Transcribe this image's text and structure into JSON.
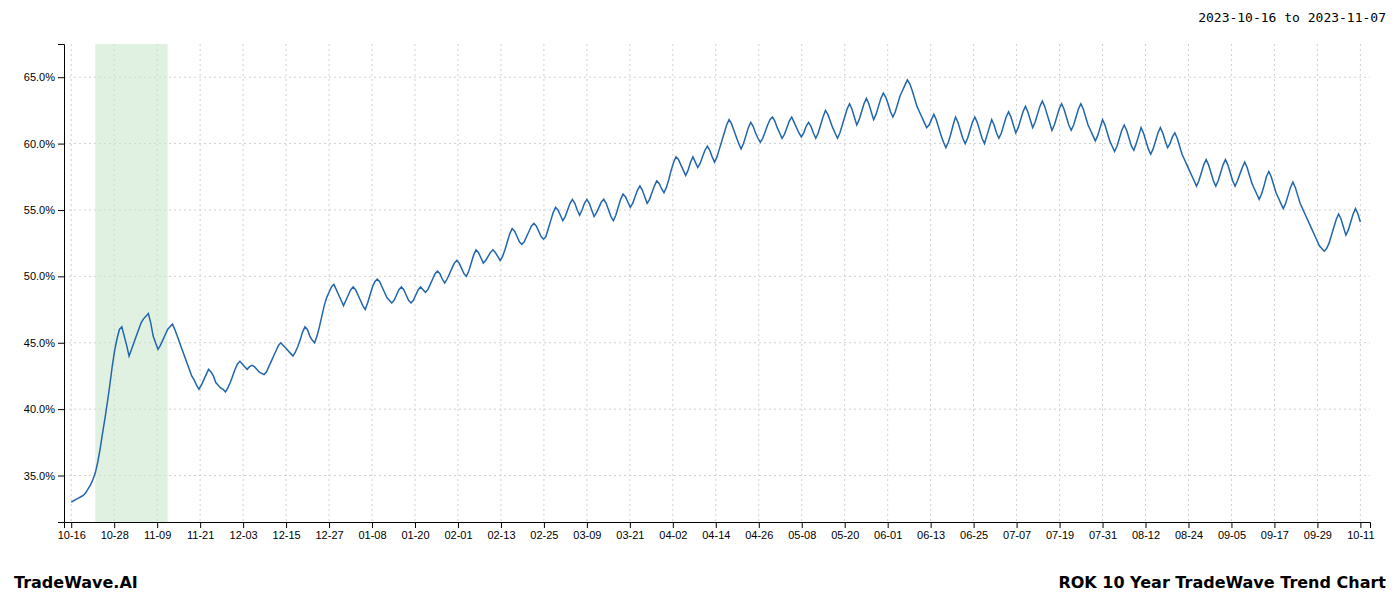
{
  "chart_data": {
    "type": "line",
    "title": "ROK 10 Year TradeWave Trend Chart",
    "subtitle": "2023-10-16 to 2023-11-07",
    "annotations": [
      "TradeWave.AI"
    ],
    "color": "#2166ac",
    "grid": true,
    "highlight": {
      "range": [
        10,
        40
      ],
      "color": "#c8e6c9"
    },
    "xlim": [
      -3,
      539
    ],
    "xticks": [
      {
        "value": 0,
        "label": "10-16"
      },
      {
        "value": 17.8333,
        "label": "10-28"
      },
      {
        "value": 35.6667,
        "label": "11-09"
      },
      {
        "value": 53.5,
        "label": "11-21"
      },
      {
        "value": 71.3333,
        "label": "12-03"
      },
      {
        "value": 89.1667,
        "label": "12-15"
      },
      {
        "value": 107,
        "label": "12-27"
      },
      {
        "value": 124.8333,
        "label": "01-08"
      },
      {
        "value": 142.6667,
        "label": "01-20"
      },
      {
        "value": 160.5,
        "label": "02-01"
      },
      {
        "value": 178.3333,
        "label": "02-13"
      },
      {
        "value": 196.1667,
        "label": "02-25"
      },
      {
        "value": 214,
        "label": "03-09"
      },
      {
        "value": 231.8333,
        "label": "03-21"
      },
      {
        "value": 249.6667,
        "label": "04-02"
      },
      {
        "value": 267.5,
        "label": "04-14"
      },
      {
        "value": 285.3333,
        "label": "04-26"
      },
      {
        "value": 303.1667,
        "label": "05-08"
      },
      {
        "value": 321,
        "label": "05-20"
      },
      {
        "value": 338.8333,
        "label": "06-01"
      },
      {
        "value": 356.6667,
        "label": "06-13"
      },
      {
        "value": 374.5,
        "label": "06-25"
      },
      {
        "value": 392.3333,
        "label": "07-07"
      },
      {
        "value": 410.1667,
        "label": "07-19"
      },
      {
        "value": 428,
        "label": "07-31"
      },
      {
        "value": 445.8333,
        "label": "08-12"
      },
      {
        "value": 463.6667,
        "label": "08-24"
      },
      {
        "value": 481.5,
        "label": "09-05"
      },
      {
        "value": 499.3333,
        "label": "09-17"
      },
      {
        "value": 517.1667,
        "label": "09-29"
      },
      {
        "value": 535,
        "label": "10-11"
      }
    ],
    "ylim": [
      0.315,
      0.675
    ],
    "yticks": [
      {
        "value": 0.35,
        "label": "35.0%"
      },
      {
        "value": 0.4,
        "label": "40.0%"
      },
      {
        "value": 0.45,
        "label": "45.0%"
      },
      {
        "value": 0.5,
        "label": "50.0%"
      },
      {
        "value": 0.55,
        "label": "55.0%"
      },
      {
        "value": 0.6,
        "label": "60.0%"
      },
      {
        "value": 0.65,
        "label": "65.0%"
      }
    ],
    "values": [
      0.33,
      0.331,
      0.332,
      0.333,
      0.334,
      0.335,
      0.337,
      0.34,
      0.343,
      0.347,
      0.352,
      0.36,
      0.37,
      0.382,
      0.393,
      0.405,
      0.418,
      0.432,
      0.444,
      0.453,
      0.46,
      0.462,
      0.455,
      0.448,
      0.44,
      0.445,
      0.45,
      0.455,
      0.46,
      0.465,
      0.468,
      0.47,
      0.472,
      0.465,
      0.455,
      0.45,
      0.445,
      0.448,
      0.452,
      0.456,
      0.46,
      0.462,
      0.464,
      0.46,
      0.455,
      0.45,
      0.445,
      0.44,
      0.435,
      0.43,
      0.425,
      0.422,
      0.418,
      0.415,
      0.418,
      0.422,
      0.426,
      0.43,
      0.428,
      0.425,
      0.42,
      0.418,
      0.416,
      0.415,
      0.413,
      0.416,
      0.42,
      0.425,
      0.43,
      0.434,
      0.436,
      0.434,
      0.432,
      0.43,
      0.432,
      0.433,
      0.432,
      0.43,
      0.428,
      0.427,
      0.426,
      0.428,
      0.432,
      0.436,
      0.44,
      0.444,
      0.448,
      0.45,
      0.448,
      0.446,
      0.444,
      0.442,
      0.44,
      0.443,
      0.447,
      0.452,
      0.458,
      0.462,
      0.46,
      0.455,
      0.452,
      0.45,
      0.455,
      0.462,
      0.47,
      0.478,
      0.484,
      0.488,
      0.492,
      0.494,
      0.49,
      0.486,
      0.482,
      0.478,
      0.482,
      0.486,
      0.49,
      0.492,
      0.49,
      0.486,
      0.482,
      0.478,
      0.475,
      0.48,
      0.486,
      0.492,
      0.496,
      0.498,
      0.496,
      0.492,
      0.488,
      0.484,
      0.482,
      0.48,
      0.482,
      0.486,
      0.49,
      0.492,
      0.49,
      0.486,
      0.482,
      0.48,
      0.482,
      0.486,
      0.49,
      0.492,
      0.49,
      0.488,
      0.49,
      0.494,
      0.498,
      0.502,
      0.504,
      0.502,
      0.498,
      0.495,
      0.498,
      0.502,
      0.506,
      0.51,
      0.512,
      0.51,
      0.506,
      0.502,
      0.5,
      0.504,
      0.51,
      0.516,
      0.52,
      0.518,
      0.514,
      0.51,
      0.512,
      0.515,
      0.518,
      0.52,
      0.518,
      0.515,
      0.512,
      0.515,
      0.52,
      0.526,
      0.532,
      0.536,
      0.534,
      0.53,
      0.526,
      0.524,
      0.526,
      0.53,
      0.534,
      0.538,
      0.54,
      0.538,
      0.534,
      0.53,
      0.528,
      0.53,
      0.536,
      0.542,
      0.548,
      0.552,
      0.55,
      0.546,
      0.542,
      0.545,
      0.55,
      0.555,
      0.558,
      0.555,
      0.55,
      0.546,
      0.55,
      0.555,
      0.558,
      0.555,
      0.55,
      0.545,
      0.548,
      0.552,
      0.556,
      0.558,
      0.555,
      0.55,
      0.545,
      0.542,
      0.546,
      0.552,
      0.558,
      0.562,
      0.56,
      0.556,
      0.552,
      0.555,
      0.56,
      0.565,
      0.568,
      0.565,
      0.56,
      0.555,
      0.558,
      0.563,
      0.568,
      0.572,
      0.57,
      0.566,
      0.563,
      0.567,
      0.573,
      0.58,
      0.586,
      0.59,
      0.588,
      0.584,
      0.58,
      0.576,
      0.58,
      0.586,
      0.59,
      0.586,
      0.582,
      0.585,
      0.59,
      0.595,
      0.598,
      0.595,
      0.59,
      0.586,
      0.59,
      0.596,
      0.602,
      0.608,
      0.614,
      0.618,
      0.615,
      0.61,
      0.605,
      0.6,
      0.596,
      0.6,
      0.606,
      0.612,
      0.616,
      0.613,
      0.608,
      0.604,
      0.601,
      0.604,
      0.609,
      0.614,
      0.618,
      0.62,
      0.617,
      0.612,
      0.608,
      0.604,
      0.607,
      0.612,
      0.617,
      0.62,
      0.616,
      0.612,
      0.608,
      0.605,
      0.608,
      0.613,
      0.616,
      0.613,
      0.608,
      0.604,
      0.608,
      0.614,
      0.62,
      0.625,
      0.622,
      0.617,
      0.612,
      0.608,
      0.604,
      0.608,
      0.614,
      0.62,
      0.626,
      0.63,
      0.626,
      0.62,
      0.614,
      0.618,
      0.624,
      0.63,
      0.634,
      0.63,
      0.624,
      0.618,
      0.622,
      0.628,
      0.634,
      0.638,
      0.635,
      0.63,
      0.624,
      0.62,
      0.624,
      0.63,
      0.636,
      0.64,
      0.644,
      0.648,
      0.645,
      0.64,
      0.634,
      0.628,
      0.624,
      0.62,
      0.616,
      0.612,
      0.614,
      0.618,
      0.622,
      0.618,
      0.612,
      0.606,
      0.601,
      0.597,
      0.601,
      0.607,
      0.614,
      0.62,
      0.616,
      0.61,
      0.604,
      0.6,
      0.604,
      0.61,
      0.616,
      0.62,
      0.616,
      0.61,
      0.604,
      0.6,
      0.606,
      0.612,
      0.618,
      0.614,
      0.608,
      0.604,
      0.608,
      0.614,
      0.62,
      0.624,
      0.62,
      0.614,
      0.608,
      0.612,
      0.618,
      0.624,
      0.628,
      0.624,
      0.618,
      0.612,
      0.616,
      0.622,
      0.628,
      0.632,
      0.628,
      0.622,
      0.616,
      0.61,
      0.614,
      0.62,
      0.626,
      0.63,
      0.626,
      0.62,
      0.614,
      0.61,
      0.614,
      0.62,
      0.626,
      0.63,
      0.626,
      0.62,
      0.614,
      0.61,
      0.606,
      0.602,
      0.606,
      0.612,
      0.618,
      0.614,
      0.608,
      0.602,
      0.598,
      0.594,
      0.598,
      0.604,
      0.61,
      0.614,
      0.61,
      0.604,
      0.598,
      0.595,
      0.6,
      0.606,
      0.612,
      0.608,
      0.602,
      0.596,
      0.592,
      0.596,
      0.602,
      0.608,
      0.612,
      0.608,
      0.602,
      0.597,
      0.6,
      0.605,
      0.608,
      0.604,
      0.598,
      0.592,
      0.588,
      0.584,
      0.58,
      0.576,
      0.572,
      0.568,
      0.572,
      0.578,
      0.584,
      0.588,
      0.584,
      0.578,
      0.572,
      0.568,
      0.572,
      0.578,
      0.584,
      0.588,
      0.584,
      0.578,
      0.572,
      0.568,
      0.572,
      0.577,
      0.582,
      0.586,
      0.582,
      0.576,
      0.57,
      0.566,
      0.562,
      0.558,
      0.562,
      0.568,
      0.575,
      0.579,
      0.575,
      0.569,
      0.563,
      0.559,
      0.555,
      0.551,
      0.555,
      0.561,
      0.567,
      0.571,
      0.567,
      0.561,
      0.555,
      0.551,
      0.547,
      0.543,
      0.539,
      0.535,
      0.531,
      0.527,
      0.523,
      0.521,
      0.519,
      0.521,
      0.525,
      0.531,
      0.537,
      0.543,
      0.547,
      0.543,
      0.537,
      0.531,
      0.535,
      0.541,
      0.547,
      0.551,
      0.547,
      0.541
    ]
  }
}
